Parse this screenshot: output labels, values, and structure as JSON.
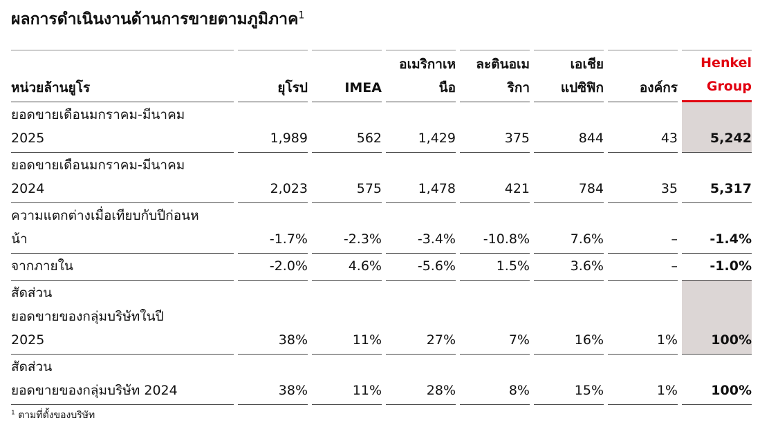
{
  "title": "ผลการดำเนินงานด้านการขายตามภูมิภาค",
  "title_note": "1",
  "table": {
    "header": [
      [
        "หน่วยล้านยูโร"
      ],
      [
        "ยุโรป"
      ],
      [
        "IMEA"
      ],
      [
        "อเมริกาเห",
        "นือ"
      ],
      [
        "ละตินอเม",
        "ริกา"
      ],
      [
        "เอเชีย",
        "แปซิฟิก"
      ],
      [
        "องค์กร"
      ],
      [
        "Henkel",
        "Group"
      ]
    ],
    "rows": [
      {
        "label": [
          "ยอดขายเดือนมกราคม-มีนาคม",
          "2025"
        ],
        "bold": true,
        "values": [
          "1,989",
          "562",
          "1,429",
          "375",
          "844",
          "43",
          "5,242"
        ]
      },
      {
        "label": [
          "ยอดขายเดือนมกราคม-มีนาคม",
          "2024"
        ],
        "bold": false,
        "values": [
          "2,023",
          "575",
          "1,478",
          "421",
          "784",
          "35",
          "5,317"
        ]
      },
      {
        "label": [
          "ความแตกต่างเมื่อเทียบกับปีก่อนห",
          "น้า"
        ],
        "bold": false,
        "values": [
          "-1.7%",
          "-2.3%",
          "-3.4%",
          "-10.8%",
          "7.6%",
          "–",
          "-1.4%"
        ]
      },
      {
        "label": [
          "จากภายใน"
        ],
        "bold": false,
        "values": [
          "-2.0%",
          "4.6%",
          "-5.6%",
          "1.5%",
          "3.6%",
          "–",
          "-1.0%"
        ]
      },
      {
        "label": [
          "สัดส่วน",
          "ยอดขายของกลุ่มบริษัทในปี",
          "2025"
        ],
        "bold": true,
        "values": [
          "38%",
          "11%",
          "27%",
          "7%",
          "16%",
          "1%",
          "100%"
        ]
      },
      {
        "label": [
          "สัดส่วน",
          "ยอดขายของกลุ่มบริษัท 2024"
        ],
        "bold": false,
        "values": [
          "38%",
          "11%",
          "28%",
          "8%",
          "15%",
          "1%",
          "100%"
        ]
      }
    ]
  },
  "footnote": {
    "mark": "1",
    "text": "ตามที่ตั้งของบริษัท"
  }
}
